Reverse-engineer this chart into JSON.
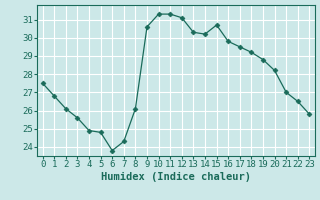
{
  "xlabel": "Humidex (Indice chaleur)",
  "x": [
    0,
    1,
    2,
    3,
    4,
    5,
    6,
    7,
    8,
    9,
    10,
    11,
    12,
    13,
    14,
    15,
    16,
    17,
    18,
    19,
    20,
    21,
    22,
    23
  ],
  "y": [
    27.5,
    26.8,
    26.1,
    25.6,
    24.9,
    24.8,
    23.8,
    24.3,
    26.1,
    30.6,
    31.3,
    31.3,
    31.1,
    30.3,
    30.2,
    30.7,
    29.8,
    29.5,
    29.2,
    28.8,
    28.2,
    27.0,
    26.5,
    25.8
  ],
  "line_color": "#1a6b5a",
  "marker": "D",
  "marker_size": 2.5,
  "bg_color": "#cce8e8",
  "grid_color": "#ffffff",
  "tick_color": "#1a6b5a",
  "label_color": "#1a6b5a",
  "ylim": [
    23.5,
    31.8
  ],
  "yticks": [
    24,
    25,
    26,
    27,
    28,
    29,
    30,
    31
  ],
  "xlim": [
    -0.5,
    23.5
  ],
  "xticks": [
    0,
    1,
    2,
    3,
    4,
    5,
    6,
    7,
    8,
    9,
    10,
    11,
    12,
    13,
    14,
    15,
    16,
    17,
    18,
    19,
    20,
    21,
    22,
    23
  ],
  "tick_fontsize": 6.5,
  "xlabel_fontsize": 7.5
}
